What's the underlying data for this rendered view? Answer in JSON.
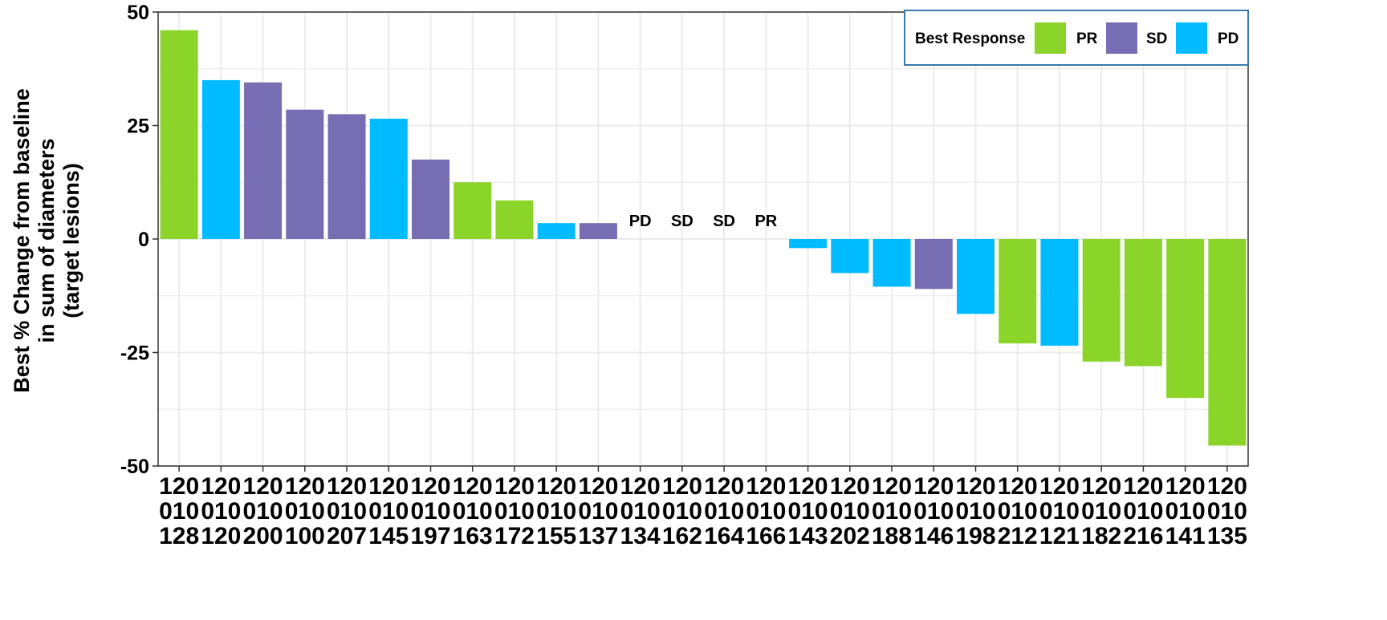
{
  "chart_data": {
    "type": "bar",
    "title": "",
    "xlabel": "",
    "ylabel": "Best % Change from baseline\nin sum of diameters\n(target lesions)",
    "ylim": [
      -50,
      50
    ],
    "yticks": [
      50,
      25,
      0,
      -25,
      -50
    ],
    "ytick_labels": [
      "50",
      "25",
      "0",
      "-25",
      "-50"
    ],
    "grid": true,
    "legend_placement": "top-right",
    "legend": {
      "title": "Best Response",
      "entries": [
        {
          "label": "PR",
          "color": "#8BD42A"
        },
        {
          "label": "SD",
          "color": "#766DB3"
        },
        {
          "label": "PD",
          "color": "#00BBFF"
        }
      ]
    },
    "categories": [
      "120010128",
      "120010120",
      "120010200",
      "120010100",
      "120010207",
      "120010145",
      "120010197",
      "120010163",
      "120010172",
      "120010155",
      "120010137",
      "120010134",
      "120010162",
      "120010164",
      "120010166",
      "120010143",
      "120010202",
      "120010188",
      "120010146",
      "120010198",
      "120010212",
      "120010121",
      "120010182",
      "120010216",
      "120010141",
      "120010135"
    ],
    "values": [
      46,
      35,
      34.5,
      28.5,
      27.5,
      26.5,
      17.5,
      12.5,
      8.5,
      3.5,
      3.5,
      0,
      0,
      0,
      0,
      -2,
      -7.5,
      -10.5,
      -11,
      -16.5,
      -23,
      -23.5,
      -27,
      -28,
      -35,
      -45.5
    ],
    "responses": [
      "PR",
      "PD",
      "SD",
      "SD",
      "SD",
      "PD",
      "SD",
      "PR",
      "PR",
      "PD",
      "SD",
      "PD",
      "SD",
      "SD",
      "PR",
      "PD",
      "PD",
      "PD",
      "SD",
      "PD",
      "PR",
      "PD",
      "PR",
      "PR",
      "PR",
      "PR"
    ],
    "zero_labels": [
      "PD",
      "SD",
      "SD",
      "PR"
    ]
  }
}
